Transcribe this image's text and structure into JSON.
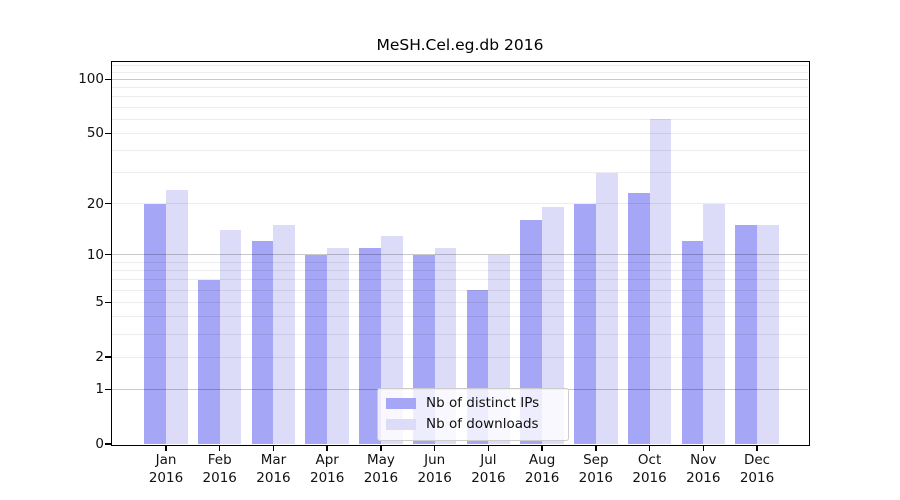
{
  "chart_data": {
    "type": "bar",
    "title": "MeSH.Cel.eg.db 2016",
    "categories": [
      {
        "month": "Jan",
        "year": "2016"
      },
      {
        "month": "Feb",
        "year": "2016"
      },
      {
        "month": "Mar",
        "year": "2016"
      },
      {
        "month": "Apr",
        "year": "2016"
      },
      {
        "month": "May",
        "year": "2016"
      },
      {
        "month": "Jun",
        "year": "2016"
      },
      {
        "month": "Jul",
        "year": "2016"
      },
      {
        "month": "Aug",
        "year": "2016"
      },
      {
        "month": "Sep",
        "year": "2016"
      },
      {
        "month": "Oct",
        "year": "2016"
      },
      {
        "month": "Nov",
        "year": "2016"
      },
      {
        "month": "Dec",
        "year": "2016"
      }
    ],
    "series": [
      {
        "name": "Nb of distinct IPs",
        "color": "#a6a6f6",
        "values": [
          20,
          7,
          12,
          10,
          11,
          10,
          6,
          16,
          20,
          23,
          12,
          15
        ]
      },
      {
        "name": "Nb of downloads",
        "color": "#dcdcf9",
        "values": [
          24,
          14,
          15,
          11,
          13,
          11,
          10,
          19,
          30,
          60,
          20,
          15
        ]
      }
    ],
    "yscale": "log1p",
    "ylim": [
      0,
      125
    ],
    "yticks": [
      0,
      1,
      2,
      5,
      10,
      20,
      50,
      100
    ],
    "gridlines": {
      "major": [
        1,
        10,
        100
      ],
      "minor": [
        2,
        3,
        4,
        5,
        6,
        7,
        8,
        9,
        20,
        30,
        40,
        50,
        60,
        70,
        80,
        90,
        110,
        120
      ]
    },
    "grid": true,
    "legend_position": "bottom-center",
    "colors": {
      "axis": "#000000",
      "background": "#ffffff",
      "legend_border": "#cccccc"
    }
  }
}
